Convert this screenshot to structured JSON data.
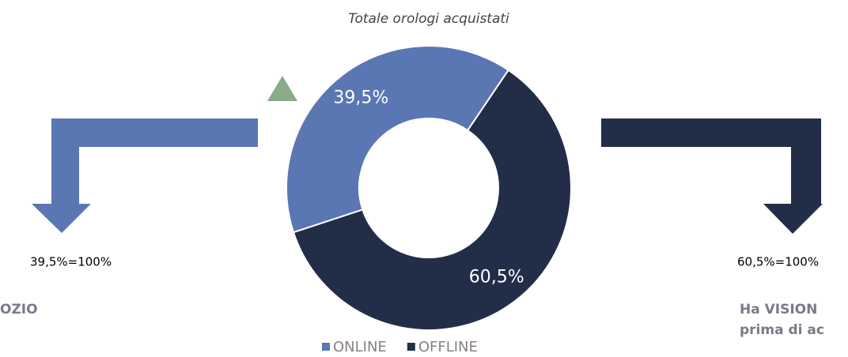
{
  "chart_data": {
    "type": "donut",
    "title": "Totale orologi acquistati",
    "categories": [
      "ONLINE",
      "OFFLINE"
    ],
    "values": [
      39.5,
      60.5
    ],
    "value_labels": [
      "39,5%",
      "60,5%"
    ],
    "colors": [
      "#5a77b3",
      "#222e48"
    ],
    "legend": "bottom",
    "annotations": [
      "39,5%=100%",
      "60,5%=100%",
      "OZIO",
      "Ha VISION",
      "prima di ac"
    ]
  }
}
